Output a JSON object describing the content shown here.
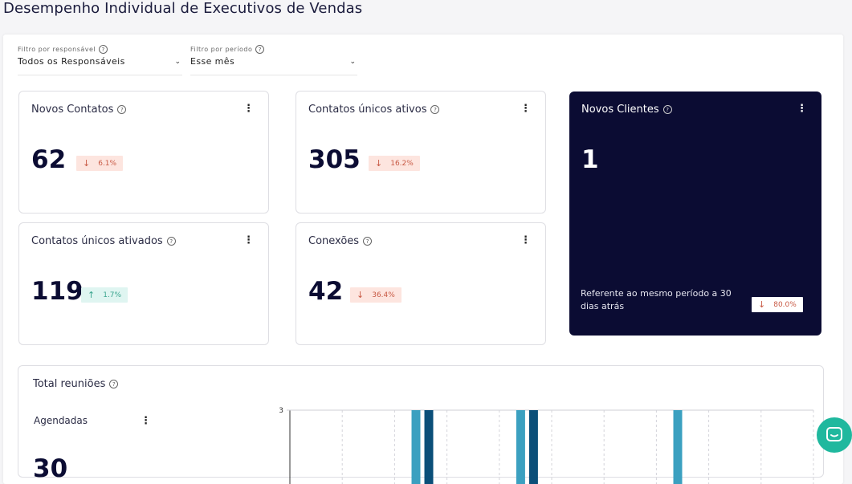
{
  "page": {
    "title": "Desempenho Individual de Executivos de Vendas"
  },
  "filters": {
    "responsavel": {
      "label": "Filtro por responsável",
      "value": "Todos os Responsáveis"
    },
    "periodo": {
      "label": "Filtro por período",
      "value": "Esse mês"
    }
  },
  "cards": {
    "novos_contatos": {
      "title": "Novos Contatos",
      "value": "62",
      "change": "6.1%",
      "direction": "down"
    },
    "contatos_unicos_ativos": {
      "title": "Contatos únicos ativos",
      "value": "305",
      "change": "16.2%",
      "direction": "down"
    },
    "novos_clientes": {
      "title": "Novos Clientes",
      "value": "1",
      "footnote": "Referente ao mesmo período a 30 dias atrás",
      "change": "80.0%",
      "direction": "down"
    },
    "contatos_unicos_ativados": {
      "title": "Contatos únicos ativados",
      "value": "119",
      "change": "1.7%",
      "direction": "up"
    },
    "conexoes": {
      "title": "Conexões",
      "value": "42",
      "change": "36.4%",
      "direction": "down"
    }
  },
  "meetings": {
    "title": "Total reuniões",
    "subtitle": "Agendadas",
    "value": "30"
  },
  "chart_data": {
    "type": "bar",
    "yticks": [
      "3"
    ],
    "ylim": [
      0,
      3
    ],
    "bar_colors": [
      "#3ba0c0",
      "#0b4f79"
    ],
    "bars": [
      {
        "slot": 2,
        "values": [
          3,
          3
        ]
      },
      {
        "slot": 4,
        "values": [
          3,
          3
        ]
      },
      {
        "slot": 7,
        "values": [
          3,
          0
        ]
      }
    ],
    "slots": 10
  },
  "icons": {
    "help": "help-circle-icon",
    "more": "more-vertical-icon",
    "chevron": "chevron-down-icon",
    "chat": "chat-bubble-icon"
  },
  "colors": {
    "dark_card": "#0b0c33",
    "down": "#c85a45",
    "up": "#3aa48e",
    "chat": "#1fb89e"
  }
}
